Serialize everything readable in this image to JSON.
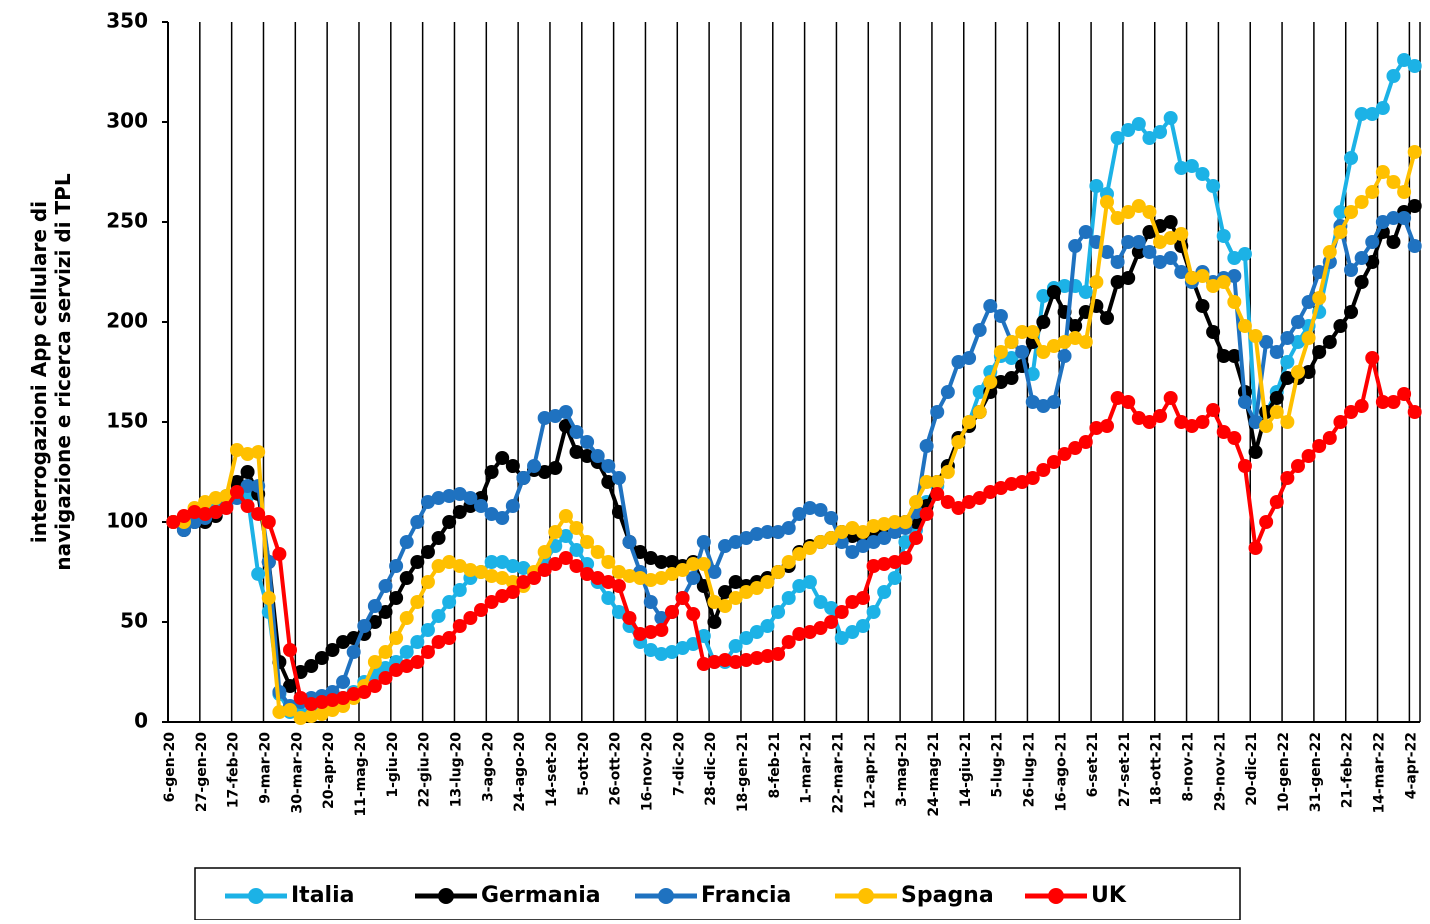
{
  "chart_data": {
    "type": "line",
    "ylabel": [
      "interrogazioni App cellulare di",
      "navigazione e ricerca servizi di TPL"
    ],
    "categories": [
      "6-gen-20",
      null,
      null,
      "27-gen-20",
      null,
      null,
      "17-feb-20",
      null,
      null,
      "9-mar-20",
      null,
      null,
      "30-mar-20",
      null,
      null,
      "20-apr-20",
      null,
      null,
      "11-mag-20",
      null,
      null,
      "1-giu-20",
      null,
      null,
      "22-giu-20",
      null,
      null,
      "13-lug-20",
      null,
      null,
      "3-ago-20",
      null,
      null,
      "24-ago-20",
      null,
      null,
      "14-set-20",
      null,
      null,
      "5-ott-20",
      null,
      null,
      "26-ott-20",
      null,
      null,
      "16-nov-20",
      null,
      null,
      "7-dic-20",
      null,
      null,
      "28-dic-20",
      null,
      null,
      "18-gen-21",
      null,
      null,
      "8-feb-21",
      null,
      null,
      "1-mar-21",
      null,
      null,
      "22-mar-21",
      null,
      null,
      "12-apr-21",
      null,
      null,
      "3-mag-21",
      null,
      null,
      "24-mag-21",
      null,
      null,
      "14-giu-21",
      null,
      null,
      "5-lug-21",
      null,
      null,
      "26-lug-21",
      null,
      null,
      "16-ago-21",
      null,
      null,
      "6-set-21",
      null,
      null,
      "27-set-21",
      null,
      null,
      "18-ott-21",
      null,
      null,
      "8-nov-21",
      null,
      null,
      "29-nov-21",
      null,
      null,
      "20-dic-21",
      null,
      null,
      "10-gen-22",
      null,
      null,
      "31-gen-22",
      null,
      null,
      "21-feb-22",
      null,
      null,
      "14-mar-22",
      null,
      null,
      "4-apr-22"
    ],
    "series": [
      {
        "name": "Italia",
        "color": "#1cb2e6",
        "values": [
          100,
          97,
          103,
          108,
          110,
          113,
          115,
          113,
          74,
          55,
          14,
          5,
          4,
          5,
          7,
          10,
          12,
          15,
          20,
          24,
          27,
          30,
          35,
          40,
          46,
          53,
          60,
          66,
          72,
          75,
          80,
          80,
          78,
          77,
          74,
          80,
          88,
          93,
          86,
          79,
          70,
          62,
          55,
          48,
          40,
          36,
          34,
          35,
          37,
          39,
          43,
          30,
          30,
          38,
          42,
          45,
          48,
          55,
          62,
          68,
          70,
          60,
          57,
          42,
          45,
          48,
          55,
          65,
          72,
          90,
          96,
          110,
          118,
          128,
          140,
          150,
          165,
          175,
          183,
          182,
          178,
          174,
          213,
          217,
          218,
          218,
          215,
          268,
          264,
          292,
          296,
          299,
          292,
          295,
          302,
          277,
          278,
          274,
          268,
          243,
          232,
          234,
          150,
          155,
          165,
          180,
          190,
          198,
          205,
          230,
          255,
          282,
          304,
          304,
          307,
          323,
          331,
          328
        ]
      },
      {
        "name": "Germania",
        "color": "#000000",
        "values": [
          100,
          96,
          100,
          100,
          103,
          110,
          120,
          125,
          114,
          80,
          30,
          18,
          25,
          28,
          32,
          36,
          40,
          42,
          44,
          50,
          55,
          62,
          72,
          80,
          85,
          92,
          100,
          105,
          108,
          112,
          125,
          132,
          128,
          122,
          126,
          125,
          127,
          148,
          135,
          133,
          130,
          120,
          105,
          90,
          85,
          82,
          80,
          80,
          78,
          80,
          68,
          50,
          65,
          70,
          68,
          70,
          72,
          75,
          78,
          85,
          88,
          90,
          92,
          95,
          93,
          92,
          95,
          97,
          98,
          100,
          100,
          108,
          120,
          128,
          142,
          148,
          155,
          165,
          170,
          172,
          178,
          190,
          200,
          215,
          205,
          198,
          205,
          208,
          202,
          220,
          222,
          235,
          245,
          248,
          250,
          238,
          222,
          208,
          195,
          183,
          183,
          165,
          135,
          155,
          162,
          172,
          172,
          175,
          185,
          190,
          198,
          205,
          220,
          230,
          245,
          240,
          255,
          258
        ]
      },
      {
        "name": "Francia",
        "color": "#1f72c0",
        "values": [
          100,
          96,
          100,
          102,
          105,
          108,
          112,
          118,
          118,
          80,
          15,
          8,
          10,
          12,
          13,
          15,
          20,
          35,
          48,
          58,
          68,
          78,
          90,
          100,
          110,
          112,
          113,
          114,
          112,
          108,
          104,
          102,
          108,
          122,
          128,
          152,
          153,
          155,
          145,
          140,
          133,
          128,
          122,
          90,
          75,
          60,
          52,
          55,
          62,
          72,
          90,
          75,
          88,
          90,
          92,
          94,
          95,
          95,
          97,
          104,
          107,
          106,
          102,
          90,
          85,
          88,
          90,
          92,
          95,
          97,
          105,
          138,
          155,
          165,
          180,
          182,
          196,
          208,
          203,
          190,
          185,
          160,
          158,
          160,
          183,
          238,
          245,
          240,
          235,
          230,
          240,
          240,
          235,
          230,
          232,
          225,
          220,
          225,
          220,
          222,
          223,
          160,
          150,
          190,
          185,
          192,
          200,
          210,
          225,
          230,
          248,
          226,
          232,
          240,
          250,
          252,
          252,
          238
        ]
      },
      {
        "name": "Spagna",
        "color": "#ffc000",
        "values": [
          100,
          100,
          107,
          110,
          112,
          113,
          136,
          134,
          135,
          62,
          5,
          6,
          2,
          3,
          4,
          6,
          8,
          12,
          18,
          30,
          35,
          42,
          52,
          60,
          70,
          78,
          80,
          78,
          76,
          75,
          73,
          72,
          70,
          68,
          75,
          85,
          95,
          103,
          97,
          90,
          85,
          80,
          75,
          73,
          72,
          71,
          72,
          74,
          76,
          79,
          79,
          60,
          58,
          62,
          65,
          67,
          70,
          75,
          80,
          84,
          87,
          90,
          92,
          95,
          97,
          95,
          98,
          99,
          100,
          100,
          110,
          120,
          120,
          125,
          140,
          150,
          155,
          170,
          185,
          190,
          195,
          195,
          185,
          188,
          190,
          192,
          190,
          220,
          260,
          252,
          255,
          258,
          255,
          240,
          242,
          244,
          222,
          223,
          218,
          220,
          210,
          198,
          193,
          148,
          155,
          150,
          175,
          192,
          212,
          235,
          245,
          255,
          260,
          265,
          275,
          270,
          265,
          285
        ]
      },
      {
        "name": "UK",
        "color": "#ff0000",
        "values": [
          100,
          103,
          105,
          104,
          105,
          107,
          115,
          108,
          104,
          100,
          84,
          36,
          12,
          9,
          10,
          11,
          12,
          14,
          15,
          18,
          22,
          26,
          28,
          30,
          35,
          40,
          42,
          48,
          52,
          56,
          60,
          63,
          65,
          70,
          72,
          76,
          79,
          82,
          78,
          74,
          72,
          70,
          68,
          52,
          44,
          45,
          46,
          55,
          62,
          54,
          29,
          30,
          31,
          30,
          31,
          32,
          33,
          34,
          40,
          44,
          45,
          47,
          50,
          55,
          60,
          62,
          78,
          79,
          80,
          82,
          92,
          104,
          114,
          110,
          107,
          110,
          112,
          115,
          117,
          119,
          120,
          122,
          126,
          130,
          134,
          137,
          140,
          147,
          148,
          162,
          160,
          152,
          150,
          153,
          162,
          150,
          148,
          150,
          156,
          145,
          142,
          128,
          87,
          100,
          110,
          122,
          128,
          133,
          138,
          142,
          150,
          155,
          158,
          182,
          160,
          160,
          164,
          155
        ]
      }
    ],
    "ylim": [
      0,
      350
    ],
    "yticks": [
      0,
      50,
      100,
      150,
      200,
      250,
      300,
      350
    ],
    "grid": "x",
    "legend": "bottom"
  }
}
